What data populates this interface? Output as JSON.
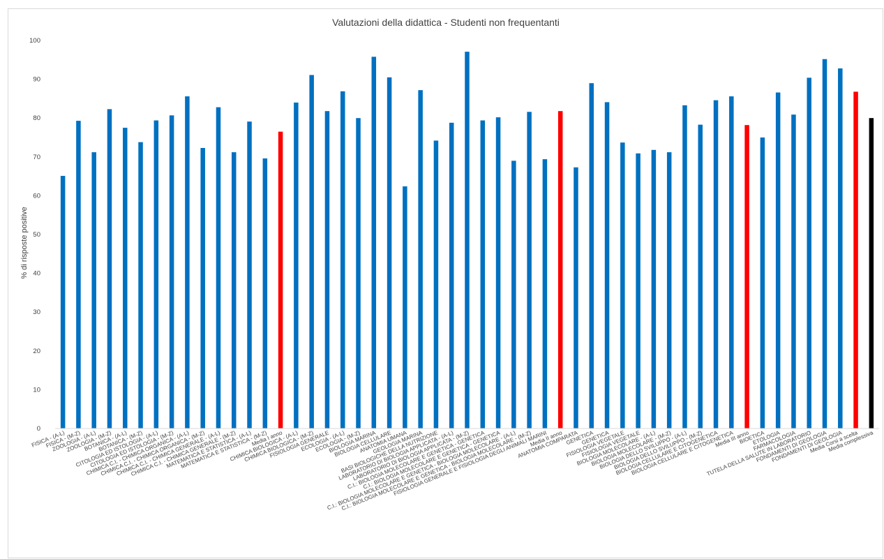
{
  "chart_data": {
    "type": "bar",
    "title": "Valutazioni della didattica - Studenti non frequentanti",
    "xlabel": "",
    "ylabel": "% di risposte positive",
    "ylim": [
      0,
      100
    ],
    "yticks": [
      0,
      10,
      20,
      30,
      40,
      50,
      60,
      70,
      80,
      90,
      100
    ],
    "grid": false,
    "colors": {
      "default": "#0070c0",
      "average": "#ff0000",
      "overall": "#000000"
    },
    "categories": [
      "FISICA - (A-L)",
      "FISICA - (M-Z)",
      "ZOOLOGIA - (A-L)",
      "ZOOLOGIA - (M-Z)",
      "BOTANICA - (A-L)",
      "BOTANICA - (M-Z)",
      "CITOLOGIA ED ISTOLOGIA - (A-L)",
      "CITOLOGIA ED ISTOLOGIA - (M-Z)",
      "CHIMICA C.I. - CHIMICA ORGANICA - (A-L)",
      "CHIMICA C.I. - CHIMICA ORGANICA - (M-Z)",
      "CHIMICA C.I. - CHIMICA GENERALE - (A-L)",
      "CHIMICA C.I. - CHIMICA GENERALE - (M-Z)",
      "MATEMATICA E STATISTICA - (A-L)",
      "MATEMATICA E STATISTICA - (M-Z)",
      "Media I anno",
      "CHIMICA BIOLOGICA - (A-L)",
      "CHIMICA BIOLOGICA - (M-Z)",
      "FISIOLOGIA GENERALE",
      "ECOLOGIA - (A-L)",
      "ECOLOGIA - (M-Z)",
      "BIOLOGIA MARINA",
      "BIOLOGIA CELLULARE",
      "ANATOMIA UMANA",
      "GEOLOGIA MARINA",
      "BASI BIOLOGICHE DELLA NUTRIZIONE",
      "LABORATORIO DI BIOLOGIA APPLICATA - (A-L)",
      "LABORATORIO DI BIOLOGIA APPLICATA - (M-Z)",
      "C.I.: BIOLOGIA MOLECOLARE E GENETICA - GENETICA",
      "C.I.: BIOLOGIA MOLECOLARE E GENETICA - GENETICA",
      "C.I.: BIOLOGIA MOLECOLARE E GENETICA - BIOLOGIA MOLECOLARE - (A-L)",
      "C.I.: BIOLOGIA MOLECOLARE E GENETICA - BIOLOGIA MOLECOLARE - (M-Z)",
      "FISIOLOGIA GENERALE E FISIOLOGIA DEGLI ANIMALI MARINI",
      "Media II anno",
      "ANATOMIA COMPARATA",
      "GENETICA",
      "GENETICA",
      "FISIOLOGIA VEGETALE",
      "FISIOLOGIA VEGETALE",
      "BIOLOGIA MOLECOLARE - (A-L)",
      "BIOLOGIA MOLECOLARE - (M-Z)",
      "BIOLOGIA DELLO SVILUPPO - (A-L)",
      "BIOLOGIA DELLO SVILUPPO - (M-Z)",
      "BIOLOGIA CELLULARE E CITOGENETICA",
      "BIOLOGIA CELLULARE E CITOGENETICA",
      "Media III anno",
      "BIOETICA",
      "ETOLOGIA",
      "FARMACOLOGIA",
      "TUTELA DELLA SALUTE IN LABORATORIO",
      "FONDAMENTI DI GEOLOGIA",
      "FONDAMENTI DI GEOLOGIA",
      "Media Corsi a scelta",
      "Media complessiva"
    ],
    "values": [
      65.1,
      79.3,
      71.2,
      82.3,
      77.5,
      73.8,
      79.4,
      80.7,
      85.6,
      72.3,
      82.8,
      71.2,
      79.1,
      69.6,
      76.5,
      84.0,
      91.1,
      81.8,
      86.9,
      80.0,
      95.8,
      90.5,
      62.4,
      87.2,
      74.2,
      78.8,
      97.1,
      79.4,
      80.2,
      69.0,
      81.6,
      69.4,
      81.8,
      67.3,
      89.0,
      84.1,
      73.7,
      70.9,
      71.8,
      71.2,
      83.3,
      78.3,
      84.6,
      85.6,
      78.2,
      75.0,
      86.6,
      80.9,
      90.4,
      95.2,
      92.8,
      86.8,
      80.0
    ],
    "bar_kind": [
      "default",
      "default",
      "default",
      "default",
      "default",
      "default",
      "default",
      "default",
      "default",
      "default",
      "default",
      "default",
      "default",
      "default",
      "average",
      "default",
      "default",
      "default",
      "default",
      "default",
      "default",
      "default",
      "default",
      "default",
      "default",
      "default",
      "default",
      "default",
      "default",
      "default",
      "default",
      "default",
      "average",
      "default",
      "default",
      "default",
      "default",
      "default",
      "default",
      "default",
      "default",
      "default",
      "default",
      "default",
      "average",
      "default",
      "default",
      "default",
      "default",
      "default",
      "default",
      "average",
      "overall"
    ]
  }
}
